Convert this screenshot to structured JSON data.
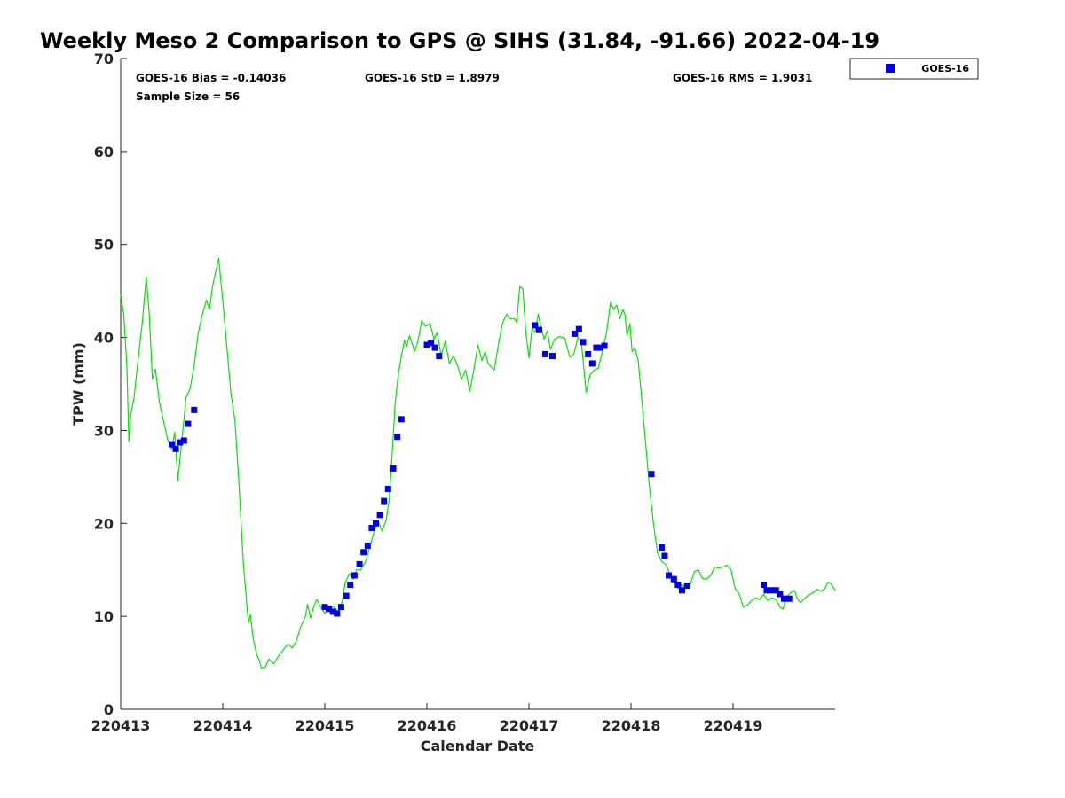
{
  "chart_data": {
    "type": "scatter",
    "title": "Weekly Meso 2 Comparison to GPS @ SIHS (31.84, -91.66) 2022-04-19",
    "xlabel": "Calendar Date",
    "ylabel": "TPW (mm)",
    "xlim": [
      13.0,
      20.0
    ],
    "ylim": [
      0,
      70
    ],
    "x_ticks": [
      13,
      14,
      15,
      16,
      17,
      18,
      19
    ],
    "x_tick_labels": [
      "220413",
      "220414",
      "220415",
      "220416",
      "220417",
      "220418",
      "220419"
    ],
    "y_ticks": [
      0,
      10,
      20,
      30,
      40,
      50,
      60,
      70
    ],
    "y_tick_labels": [
      "0",
      "10",
      "20",
      "30",
      "40",
      "50",
      "60",
      "70"
    ],
    "grid": false,
    "legend_position": "top-right-outside",
    "stats": {
      "bias": "GOES-16 Bias = -0.14036",
      "std": "GOES-16 StD = 1.8979",
      "rms": "GOES-16 RMS = 1.9031",
      "sample": "Sample Size = 56"
    },
    "series": [
      {
        "name": "GOES-16",
        "marker": "square",
        "color": "#0000e6",
        "points": [
          [
            13.5,
            28.5
          ],
          [
            13.54,
            28.0
          ],
          [
            13.58,
            28.7
          ],
          [
            13.62,
            28.9
          ],
          [
            13.66,
            30.7
          ],
          [
            13.72,
            32.2
          ],
          [
            15.0,
            11.0
          ],
          [
            15.04,
            10.8
          ],
          [
            15.08,
            10.5
          ],
          [
            15.12,
            10.3
          ],
          [
            15.16,
            11.0
          ],
          [
            15.21,
            12.2
          ],
          [
            15.25,
            13.4
          ],
          [
            15.29,
            14.4
          ],
          [
            15.34,
            15.6
          ],
          [
            15.38,
            16.9
          ],
          [
            15.42,
            17.6
          ],
          [
            15.46,
            19.5
          ],
          [
            15.5,
            20.0
          ],
          [
            15.54,
            20.9
          ],
          [
            15.58,
            22.4
          ],
          [
            15.62,
            23.7
          ],
          [
            15.67,
            25.9
          ],
          [
            15.71,
            29.3
          ],
          [
            15.75,
            31.2
          ],
          [
            16.0,
            39.2
          ],
          [
            16.04,
            39.4
          ],
          [
            16.08,
            38.9
          ],
          [
            16.12,
            38.0
          ],
          [
            17.06,
            41.3
          ],
          [
            17.1,
            40.8
          ],
          [
            17.16,
            38.2
          ],
          [
            17.23,
            38.0
          ],
          [
            17.45,
            40.4
          ],
          [
            17.49,
            40.9
          ],
          [
            17.53,
            39.5
          ],
          [
            17.58,
            38.2
          ],
          [
            17.62,
            37.2
          ],
          [
            17.66,
            38.9
          ],
          [
            17.7,
            38.9
          ],
          [
            17.74,
            39.1
          ],
          [
            18.2,
            25.3
          ],
          [
            18.3,
            17.4
          ],
          [
            18.33,
            16.5
          ],
          [
            18.37,
            14.4
          ],
          [
            18.42,
            14.0
          ],
          [
            18.46,
            13.4
          ],
          [
            18.5,
            12.8
          ],
          [
            18.55,
            13.3
          ],
          [
            19.3,
            13.4
          ],
          [
            19.33,
            12.8
          ],
          [
            19.38,
            12.8
          ],
          [
            19.42,
            12.8
          ],
          [
            19.46,
            12.4
          ],
          [
            19.5,
            11.9
          ],
          [
            19.55,
            11.9
          ]
        ]
      },
      {
        "name": "GPS",
        "type": "line",
        "color": "#00e600",
        "points": [
          [
            13.0,
            44.6
          ],
          [
            13.03,
            42.5
          ],
          [
            13.06,
            37.0
          ],
          [
            13.08,
            28.8
          ],
          [
            13.1,
            31.8
          ],
          [
            13.13,
            33.5
          ],
          [
            13.17,
            37.5
          ],
          [
            13.21,
            41.5
          ],
          [
            13.25,
            46.5
          ],
          [
            13.28,
            42.5
          ],
          [
            13.31,
            35.5
          ],
          [
            13.34,
            36.6
          ],
          [
            13.38,
            33.0
          ],
          [
            13.42,
            31.0
          ],
          [
            13.46,
            29.0
          ],
          [
            13.5,
            28.0
          ],
          [
            13.53,
            29.8
          ],
          [
            13.56,
            24.6
          ],
          [
            13.6,
            29.0
          ],
          [
            13.64,
            33.5
          ],
          [
            13.68,
            34.5
          ],
          [
            13.72,
            37.0
          ],
          [
            13.76,
            40.5
          ],
          [
            13.8,
            42.5
          ],
          [
            13.84,
            44.0
          ],
          [
            13.87,
            43.0
          ],
          [
            13.9,
            45.5
          ],
          [
            13.93,
            47.0
          ],
          [
            13.96,
            48.5
          ],
          [
            14.0,
            44.0
          ],
          [
            14.04,
            39.0
          ],
          [
            14.08,
            34.0
          ],
          [
            14.12,
            31.0
          ],
          [
            14.16,
            24.0
          ],
          [
            14.2,
            16.0
          ],
          [
            14.23,
            12.0
          ],
          [
            14.25,
            9.3
          ],
          [
            14.27,
            10.2
          ],
          [
            14.3,
            7.5
          ],
          [
            14.33,
            6.0
          ],
          [
            14.36,
            5.2
          ],
          [
            14.38,
            4.4
          ],
          [
            14.42,
            4.6
          ],
          [
            14.45,
            5.4
          ],
          [
            14.5,
            4.9
          ],
          [
            14.55,
            5.8
          ],
          [
            14.6,
            6.5
          ],
          [
            14.64,
            7.0
          ],
          [
            14.68,
            6.6
          ],
          [
            14.72,
            7.3
          ],
          [
            14.76,
            8.8
          ],
          [
            14.79,
            9.5
          ],
          [
            14.81,
            10.0
          ],
          [
            14.83,
            11.3
          ],
          [
            14.86,
            9.8
          ],
          [
            14.89,
            11.0
          ],
          [
            14.92,
            11.8
          ],
          [
            14.96,
            11.0
          ],
          [
            15.0,
            10.3
          ],
          [
            15.05,
            11.0
          ],
          [
            15.09,
            11.0
          ],
          [
            15.13,
            10.5
          ],
          [
            15.17,
            11.6
          ],
          [
            15.2,
            13.6
          ],
          [
            15.24,
            14.6
          ],
          [
            15.28,
            14.0
          ],
          [
            15.31,
            15.0
          ],
          [
            15.35,
            15.0
          ],
          [
            15.4,
            15.9
          ],
          [
            15.45,
            17.8
          ],
          [
            15.48,
            19.0
          ],
          [
            15.52,
            20.3
          ],
          [
            15.56,
            19.2
          ],
          [
            15.6,
            20.3
          ],
          [
            15.63,
            22.5
          ],
          [
            15.66,
            27.5
          ],
          [
            15.69,
            33.0
          ],
          [
            15.72,
            36.0
          ],
          [
            15.75,
            38.0
          ],
          [
            15.78,
            39.7
          ],
          [
            15.8,
            39.0
          ],
          [
            15.83,
            40.2
          ],
          [
            15.88,
            38.5
          ],
          [
            15.91,
            39.5
          ],
          [
            15.95,
            41.8
          ],
          [
            15.99,
            41.2
          ],
          [
            16.03,
            41.5
          ],
          [
            16.07,
            39.8
          ],
          [
            16.1,
            40.5
          ],
          [
            16.14,
            38.0
          ],
          [
            16.18,
            39.6
          ],
          [
            16.22,
            37.2
          ],
          [
            16.26,
            38.0
          ],
          [
            16.3,
            37.0
          ],
          [
            16.34,
            35.5
          ],
          [
            16.38,
            36.5
          ],
          [
            16.42,
            34.2
          ],
          [
            16.46,
            36.5
          ],
          [
            16.5,
            39.2
          ],
          [
            16.54,
            37.5
          ],
          [
            16.57,
            38.5
          ],
          [
            16.6,
            37.2
          ],
          [
            16.66,
            36.5
          ],
          [
            16.7,
            39.2
          ],
          [
            16.74,
            41.5
          ],
          [
            16.78,
            42.5
          ],
          [
            16.82,
            42.0
          ],
          [
            16.86,
            42.0
          ],
          [
            16.88,
            41.6
          ],
          [
            16.91,
            45.5
          ],
          [
            16.94,
            45.2
          ],
          [
            16.97,
            40.5
          ],
          [
            17.0,
            37.8
          ],
          [
            17.03,
            41.0
          ],
          [
            17.06,
            40.5
          ],
          [
            17.09,
            42.5
          ],
          [
            17.12,
            41.0
          ],
          [
            17.15,
            39.8
          ],
          [
            17.18,
            40.7
          ],
          [
            17.21,
            38.7
          ],
          [
            17.25,
            39.8
          ],
          [
            17.3,
            40.1
          ],
          [
            17.35,
            39.9
          ],
          [
            17.4,
            37.9
          ],
          [
            17.44,
            38.2
          ],
          [
            17.48,
            40.0
          ],
          [
            17.51,
            39.8
          ],
          [
            17.54,
            36.5
          ],
          [
            17.56,
            34.1
          ],
          [
            17.6,
            36.0
          ],
          [
            17.64,
            36.5
          ],
          [
            17.68,
            36.7
          ],
          [
            17.72,
            38.5
          ],
          [
            17.76,
            40.5
          ],
          [
            17.8,
            43.8
          ],
          [
            17.83,
            43.0
          ],
          [
            17.86,
            43.5
          ],
          [
            17.89,
            42.0
          ],
          [
            17.92,
            43.0
          ],
          [
            17.94,
            42.5
          ],
          [
            17.96,
            40.2
          ],
          [
            17.99,
            41.5
          ],
          [
            18.01,
            38.5
          ],
          [
            18.04,
            38.8
          ],
          [
            18.07,
            37.5
          ],
          [
            18.1,
            34.0
          ],
          [
            18.14,
            29.0
          ],
          [
            18.18,
            24.0
          ],
          [
            18.22,
            20.0
          ],
          [
            18.26,
            16.8
          ],
          [
            18.3,
            15.9
          ],
          [
            18.34,
            15.6
          ],
          [
            18.38,
            14.6
          ],
          [
            18.42,
            13.8
          ],
          [
            18.46,
            13.0
          ],
          [
            18.5,
            13.4
          ],
          [
            18.54,
            13.0
          ],
          [
            18.58,
            13.4
          ],
          [
            18.62,
            14.8
          ],
          [
            18.66,
            15.0
          ],
          [
            18.7,
            14.1
          ],
          [
            18.74,
            14.0
          ],
          [
            18.78,
            14.4
          ],
          [
            18.82,
            15.3
          ],
          [
            18.86,
            15.2
          ],
          [
            18.9,
            15.3
          ],
          [
            18.94,
            15.5
          ],
          [
            18.98,
            15.0
          ],
          [
            19.02,
            13.0
          ],
          [
            19.06,
            12.4
          ],
          [
            19.1,
            11.0
          ],
          [
            19.14,
            11.2
          ],
          [
            19.18,
            11.7
          ],
          [
            19.22,
            12.0
          ],
          [
            19.26,
            11.8
          ],
          [
            19.3,
            12.4
          ],
          [
            19.34,
            11.7
          ],
          [
            19.38,
            12.0
          ],
          [
            19.42,
            11.8
          ],
          [
            19.46,
            11.0
          ],
          [
            19.49,
            10.8
          ],
          [
            19.52,
            12.0
          ],
          [
            19.56,
            12.5
          ],
          [
            19.6,
            12.8
          ],
          [
            19.63,
            11.9
          ],
          [
            19.66,
            11.5
          ],
          [
            19.7,
            11.9
          ],
          [
            19.74,
            12.3
          ],
          [
            19.78,
            12.5
          ],
          [
            19.82,
            12.9
          ],
          [
            19.86,
            12.7
          ],
          [
            19.9,
            13.0
          ],
          [
            19.93,
            13.7
          ],
          [
            19.96,
            13.5
          ],
          [
            20.0,
            12.8
          ]
        ]
      }
    ],
    "legend": [
      {
        "name": "GOES-16",
        "marker": "square",
        "color": "#0000e6"
      }
    ]
  }
}
